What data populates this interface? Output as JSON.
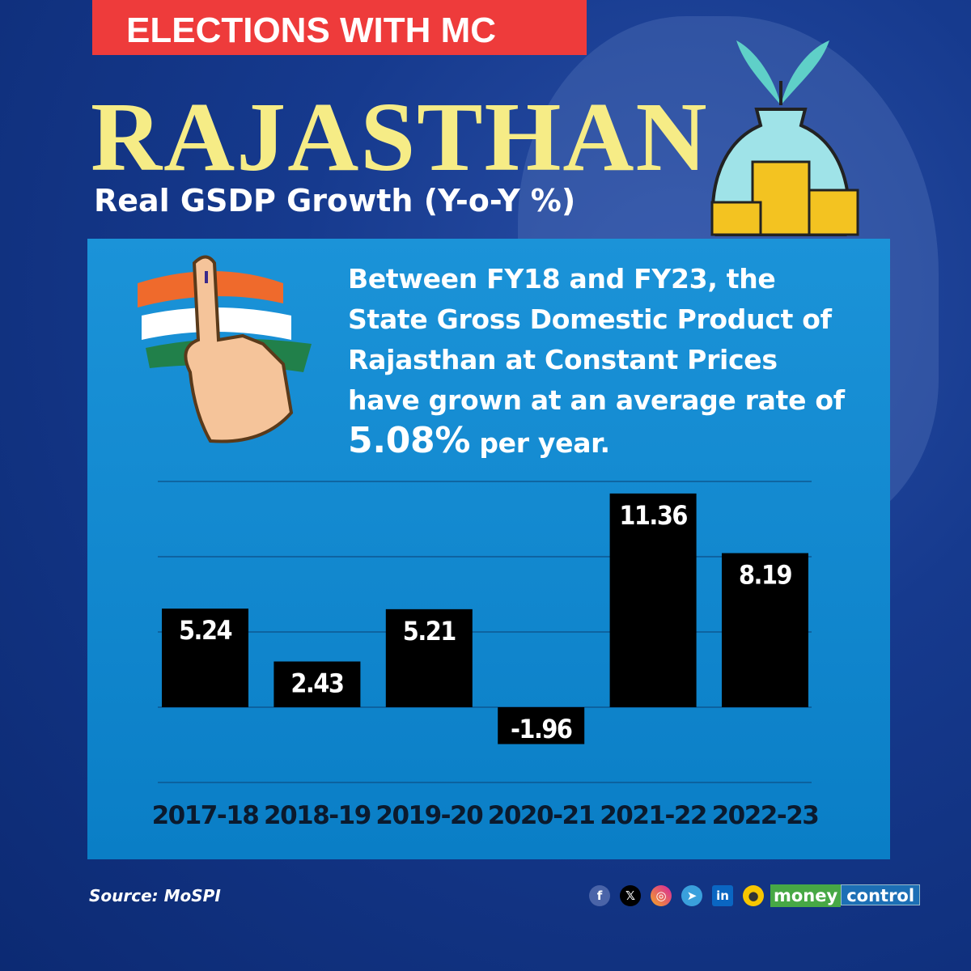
{
  "banner": "ELECTIONS WITH MC",
  "title": "RAJASTHAN",
  "subtitle": "Real GSDP Growth (Y-o-Y %)",
  "description": {
    "pre": "Between FY18 and FY23, the State Gross Domestic Product of Rajasthan at Constant Prices have grown at an average rate of ",
    "highlight": "5.08%",
    "post": " per year."
  },
  "source": "Source: MoSPI",
  "social_icons": [
    "facebook-icon",
    "x-icon",
    "instagram-icon",
    "telegram-icon",
    "linkedin-icon",
    "koo-icon"
  ],
  "brand": {
    "part1": "money",
    "part2": "control"
  },
  "colors": {
    "banner": "#ee3b3b",
    "title": "#f6ec86",
    "panel": "#1b93d8",
    "bar": "#000000"
  },
  "chart_data": {
    "type": "bar",
    "categories": [
      "2017-18",
      "2018-19",
      "2019-20",
      "2020-21",
      "2021-22",
      "2022-23"
    ],
    "values": [
      5.24,
      2.43,
      5.21,
      -1.96,
      11.36,
      8.19
    ],
    "labels": [
      "5.24",
      "2.43",
      "5.21",
      "-1.96",
      "11.36",
      "8.19"
    ],
    "ylim": [
      -4,
      12
    ],
    "grid": true,
    "xlabel": "",
    "ylabel": ""
  }
}
